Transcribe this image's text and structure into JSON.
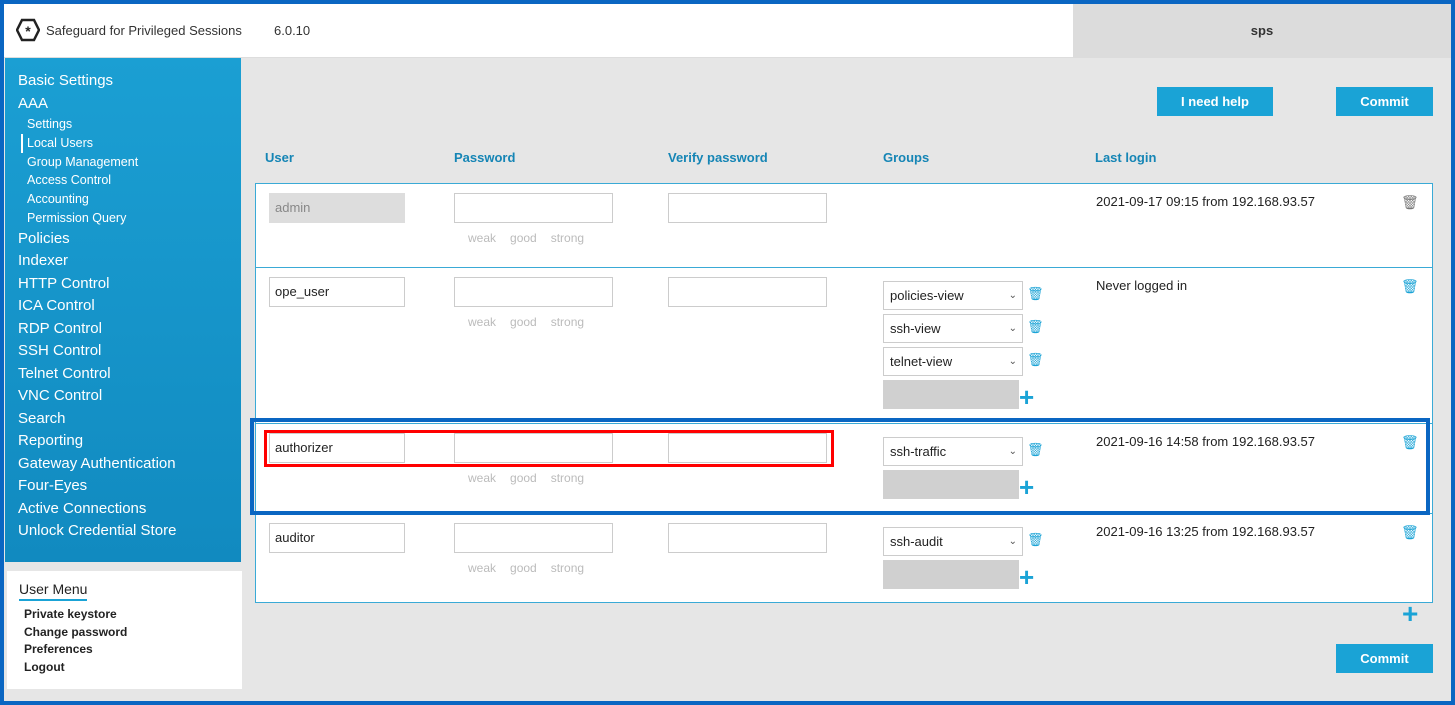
{
  "header": {
    "app_title": "Safeguard for Privileged Sessions",
    "version": "6.0.10",
    "hostname": "sps"
  },
  "sidebar": {
    "items": [
      "Basic Settings",
      "AAA"
    ],
    "aaa_sub": [
      "Settings",
      "Local Users",
      "Group Management",
      "Access Control",
      "Accounting",
      "Permission Query"
    ],
    "active": "Local Users",
    "items2": [
      "Policies",
      "Indexer",
      "HTTP Control",
      "ICA Control",
      "RDP Control",
      "SSH Control",
      "Telnet Control",
      "VNC Control",
      "Search",
      "Reporting",
      "Gateway Authentication",
      "Four-Eyes",
      "Active Connections",
      "Unlock Credential Store"
    ]
  },
  "user_menu": {
    "title": "User Menu",
    "items": [
      "Private keystore",
      "Change password",
      "Preferences",
      "Logout"
    ]
  },
  "toolbar": {
    "help": "I need help",
    "commit": "Commit"
  },
  "columns": {
    "user": "User",
    "password": "Password",
    "verify": "Verify password",
    "groups": "Groups",
    "last_login": "Last login"
  },
  "strength": [
    "weak",
    "good",
    "strong"
  ],
  "users": [
    {
      "name": "admin",
      "groups": [],
      "last_login": "2021-09-17 09:15 from 192.168.93.57",
      "editable": false
    },
    {
      "name": "ope_user",
      "groups": [
        "policies-view",
        "ssh-view",
        "telnet-view"
      ],
      "last_login": "Never logged in"
    },
    {
      "name": "authorizer",
      "groups": [
        "ssh-traffic"
      ],
      "last_login": "2021-09-16 14:58 from 192.168.93.57"
    },
    {
      "name": "auditor",
      "groups": [
        "ssh-audit"
      ],
      "last_login": "2021-09-16 13:25 from 192.168.93.57"
    }
  ],
  "colors": {
    "accent": "#1aa3d6",
    "highlight_row": "#0a66c2",
    "highlight_fields": "#ff0000"
  }
}
